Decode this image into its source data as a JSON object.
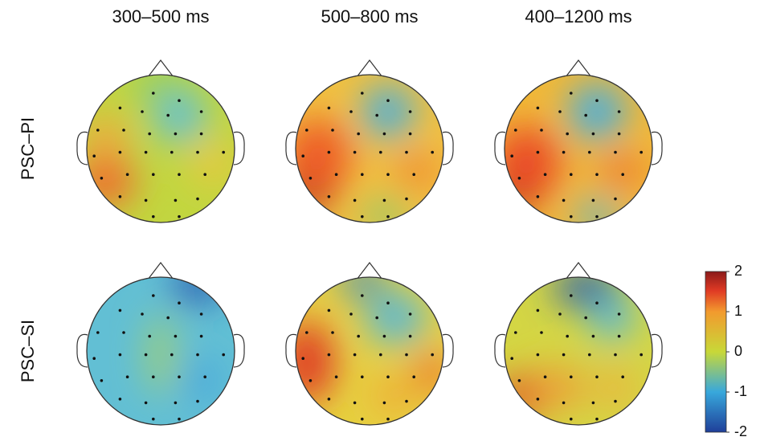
{
  "columns": [
    "300–500 ms",
    "500–800 ms",
    "400–1200 ms"
  ],
  "rows": [
    "PSC–PI",
    "PSC–SI"
  ],
  "colorbar": {
    "lim": [
      -2,
      2
    ],
    "ticks": [
      2,
      1,
      0,
      -1,
      -2
    ]
  }
}
